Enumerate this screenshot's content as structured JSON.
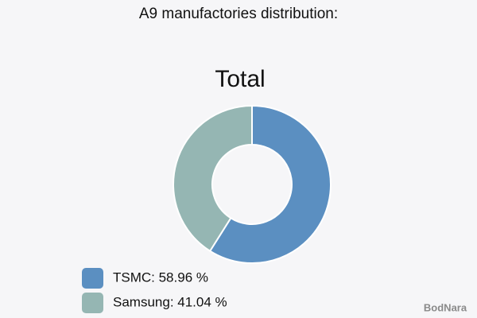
{
  "chart_data": {
    "type": "donut",
    "title": "A9 manufactories distribution:",
    "subtitle": "Total",
    "values": [
      58.96,
      41.04
    ],
    "value_labels": [
      "TSMC: 58.96 %",
      "Samsung: 41.04 %"
    ],
    "colors": [
      "#5b8fc1",
      "#95b6b3"
    ],
    "watermark": "BodNara"
  }
}
